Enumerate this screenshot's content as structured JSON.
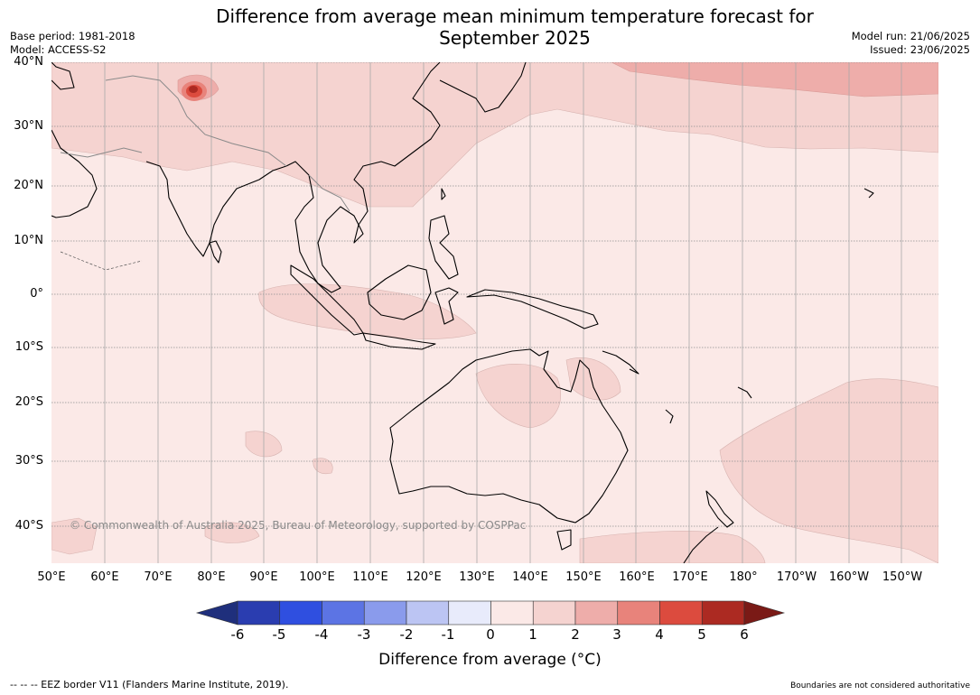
{
  "title_line1": "Difference from average mean minimum temperature forecast for",
  "title_line2": "September 2025",
  "base_period": "Base period: 1981-2018",
  "model": "Model: ACCESS-S2",
  "model_run": "Model run: 21/06/2025",
  "issued": "Issued: 23/06/2025",
  "copyright": "© Commonwealth of Australia 2025, Bureau of Meteorology, supported by COSPPac",
  "lat_labels": [
    "40°N",
    "30°N",
    "20°N",
    "10°N",
    "0°",
    "10°S",
    "20°S",
    "30°S",
    "40°S"
  ],
  "lon_labels": [
    "50°E",
    "60°E",
    "70°E",
    "80°E",
    "90°E",
    "100°E",
    "110°E",
    "120°E",
    "130°E",
    "140°E",
    "150°E",
    "160°E",
    "170°E",
    "180°",
    "170°W",
    "160°W",
    "150°W"
  ],
  "colorbar": {
    "title": "Difference from average (°C)",
    "ticks": [
      "-6",
      "-5",
      "-4",
      "-3",
      "-2",
      "-1",
      "0",
      "1",
      "2",
      "3",
      "4",
      "5",
      "6"
    ],
    "colors": [
      "#1f2f7c",
      "#2a3db0",
      "#2f4fe0",
      "#5c74e4",
      "#8a9bec",
      "#bcc5f3",
      "#e8ebfb",
      "#fbe9e7",
      "#f5d3d0",
      "#eeadaa",
      "#e8837b",
      "#dc4b3e",
      "#ac2a22",
      "#7a1a16"
    ]
  },
  "footer_left": "--  --  -- EEZ border V11 (Flanders Marine Institute, 2019).",
  "footer_right": "Boundaries are not considered authoritative"
}
